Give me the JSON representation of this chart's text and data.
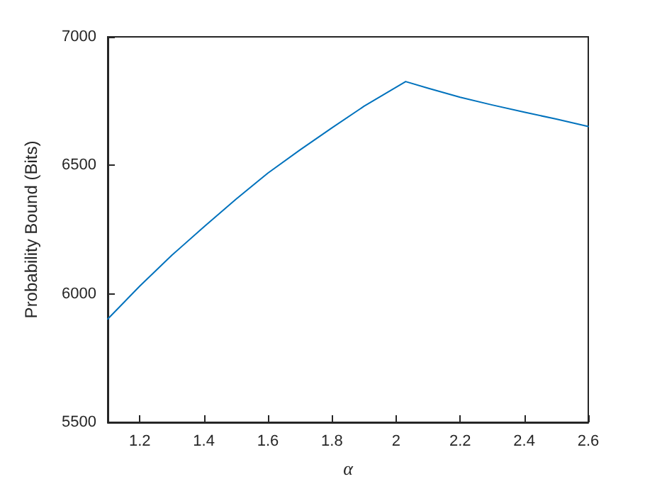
{
  "chart_data": {
    "type": "line",
    "xlabel": "α",
    "ylabel": "Probability Bound (Bits)",
    "x": [
      1.1,
      1.2,
      1.3,
      1.4,
      1.5,
      1.6,
      1.7,
      1.8,
      1.9,
      2.03,
      2.1,
      2.2,
      2.3,
      2.4,
      2.5,
      2.6
    ],
    "series": [
      {
        "color": "#0072bd",
        "values": [
          5902,
          6030,
          6150,
          6260,
          6368,
          6470,
          6560,
          6646,
          6730,
          6826,
          6800,
          6765,
          6735,
          6707,
          6680,
          6651
        ]
      }
    ],
    "xlim": [
      1.1,
      2.6
    ],
    "xticks": [
      {
        "value": 1.2,
        "label": "1.2"
      },
      {
        "value": 1.4,
        "label": "1.4"
      },
      {
        "value": 1.6,
        "label": "1.6"
      },
      {
        "value": 1.8,
        "label": "1.8"
      },
      2,
      {
        "value": 2.2,
        "label": "2.2"
      },
      {
        "value": 2.4,
        "label": "2.4"
      },
      {
        "value": 2.6,
        "label": "2.6"
      }
    ],
    "ylim": [
      5500,
      7000
    ],
    "yticks": [
      5500,
      6000,
      6500,
      7000
    ],
    "grid": false,
    "marker": "none",
    "line_style": "solid"
  }
}
